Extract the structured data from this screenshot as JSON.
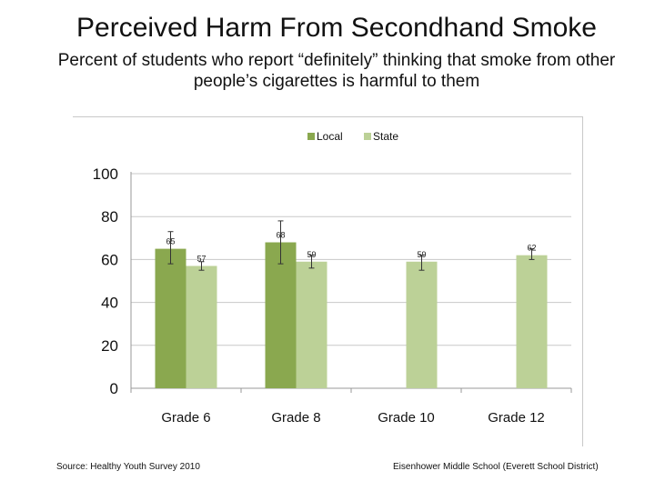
{
  "title": "Perceived Harm From Secondhand Smoke",
  "subtitle": "Percent of students who report “definitely” thinking that smoke from other people’s cigarettes is harmful to them",
  "footer": {
    "source": "Source: Healthy Youth Survey 2010",
    "school": "Eisenhower Middle School (Everett School District)"
  },
  "colors": {
    "local": "#8aa84f",
    "state": "#bcd197",
    "grid": "#c8c8c8",
    "axis": "#999999",
    "error": "#333333"
  },
  "chart_data": {
    "type": "bar",
    "title": "",
    "xlabel": "",
    "ylabel": "",
    "ylim": [
      0,
      100
    ],
    "yticks": [
      0,
      20,
      40,
      60,
      80,
      100
    ],
    "grid": true,
    "legend_position": "top",
    "categories": [
      "Grade 6",
      "Grade 8",
      "Grade 10",
      "Grade 12"
    ],
    "series": [
      {
        "name": "Local",
        "values": [
          65,
          68,
          null,
          null
        ],
        "labels": [
          "65",
          "68",
          null,
          null
        ],
        "error_low": [
          58,
          58,
          null,
          null
        ],
        "error_high": [
          73,
          78,
          null,
          null
        ]
      },
      {
        "name": "State",
        "values": [
          57,
          59,
          59,
          62
        ],
        "labels": [
          "57",
          "59",
          "59",
          "62"
        ],
        "error_low": [
          55,
          56,
          55,
          60
        ],
        "error_high": [
          59,
          62,
          62,
          65
        ]
      }
    ]
  }
}
